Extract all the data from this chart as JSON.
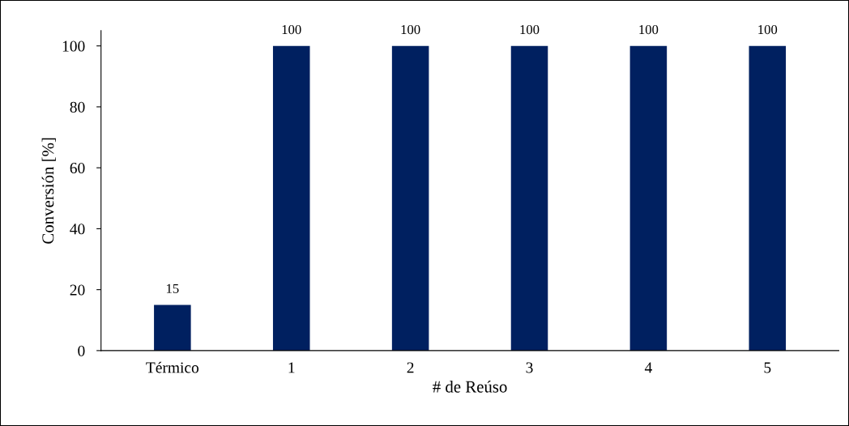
{
  "chart_data": {
    "type": "bar",
    "xlabel": "# de Reúso",
    "ylabel": "Conversión [%]",
    "categories": [
      "Térmico",
      "1",
      "2",
      "3",
      "4",
      "5"
    ],
    "values": [
      15,
      100,
      100,
      100,
      100,
      100
    ],
    "color": "#002060",
    "ylim": [
      0,
      105
    ],
    "yticks": [
      0,
      20,
      40,
      60,
      80,
      100
    ],
    "grid": false,
    "data_labels": true
  }
}
